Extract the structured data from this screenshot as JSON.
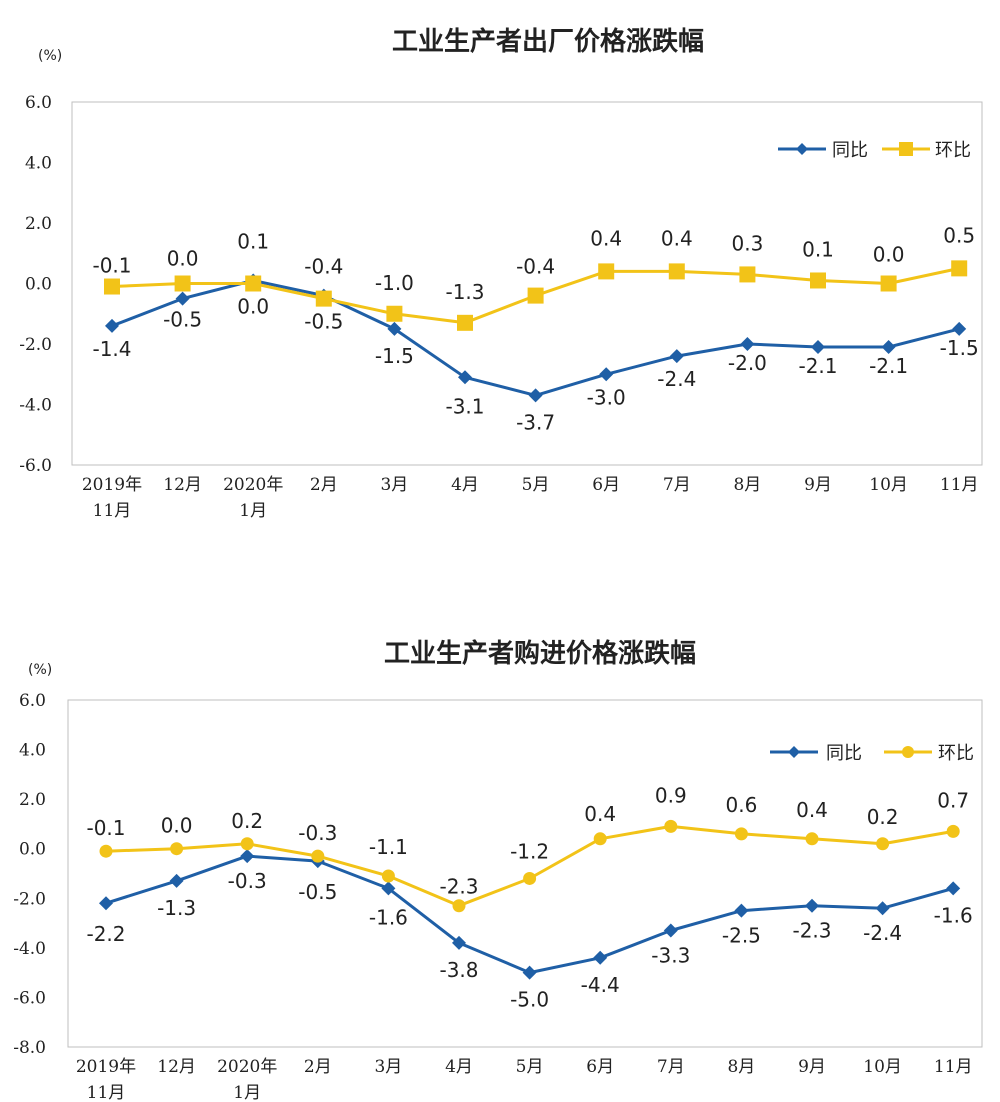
{
  "colors": {
    "yoy": "#1f5fa6",
    "mom": "#f2c318",
    "plot_border": "#bfbfbf"
  },
  "chart_data": [
    {
      "type": "line",
      "title": "工业生产者出厂价格涨跌幅",
      "unit": "(%)",
      "categories": [
        [
          "2019年",
          "11月"
        ],
        [
          "12月"
        ],
        [
          "2020年",
          "1月"
        ],
        [
          "2月"
        ],
        [
          "3月"
        ],
        [
          "4月"
        ],
        [
          "5月"
        ],
        [
          "6月"
        ],
        [
          "7月"
        ],
        [
          "8月"
        ],
        [
          "9月"
        ],
        [
          "10月"
        ],
        [
          "11月"
        ]
      ],
      "ylim": [
        -6.0,
        6.0
      ],
      "yticks": [
        "6.0",
        "4.0",
        "2.0",
        "0.0",
        "-2.0",
        "-4.0",
        "-6.0"
      ],
      "legend_position": "top-right",
      "grid": false,
      "series": [
        {
          "name": "同比",
          "marker": "diamond",
          "color": "#1f5fa6",
          "values": [
            -1.4,
            -0.5,
            0.1,
            -0.4,
            -1.5,
            -3.1,
            -3.7,
            -3.0,
            -2.4,
            -2.0,
            -2.1,
            -2.1,
            -1.5
          ]
        },
        {
          "name": "环比",
          "marker": "square",
          "color": "#f2c318",
          "values": [
            -0.1,
            0.0,
            0.0,
            -0.5,
            -1.0,
            -1.3,
            -0.4,
            0.4,
            0.4,
            0.3,
            0.1,
            0.0,
            0.5
          ]
        }
      ],
      "data_labels": {
        "同比": [
          "-1.4",
          "-0.5",
          "0.1",
          "-0.4",
          "-1.5",
          "-3.1",
          "-3.7",
          "-3.0",
          "-2.4",
          "-2.0",
          "-2.1",
          "-2.1",
          "-1.5"
        ],
        "环比": [
          "-0.1",
          "0.0",
          "0.0",
          "-0.5",
          "-1.0",
          "-1.3",
          "-0.4",
          "0.4",
          "0.4",
          "0.3",
          "0.1",
          "0.0",
          "0.5"
        ]
      }
    },
    {
      "type": "line",
      "title": "工业生产者购进价格涨跌幅",
      "unit": "(%)",
      "categories": [
        [
          "2019年",
          "11月"
        ],
        [
          "12月"
        ],
        [
          "2020年",
          "1月"
        ],
        [
          "2月"
        ],
        [
          "3月"
        ],
        [
          "4月"
        ],
        [
          "5月"
        ],
        [
          "6月"
        ],
        [
          "7月"
        ],
        [
          "8月"
        ],
        [
          "9月"
        ],
        [
          "10月"
        ],
        [
          "11月"
        ]
      ],
      "ylim": [
        -8.0,
        6.0
      ],
      "yticks": [
        "6.0",
        "4.0",
        "2.0",
        "0.0",
        "-2.0",
        "-4.0",
        "-6.0",
        "-8.0"
      ],
      "legend_position": "top-right",
      "grid": false,
      "series": [
        {
          "name": "同比",
          "marker": "diamond",
          "color": "#1f5fa6",
          "values": [
            -2.2,
            -1.3,
            -0.3,
            -0.5,
            -1.6,
            -3.8,
            -5.0,
            -4.4,
            -3.3,
            -2.5,
            -2.3,
            -2.4,
            -1.6
          ]
        },
        {
          "name": "环比",
          "marker": "circle",
          "color": "#f2c318",
          "values": [
            -0.1,
            0.0,
            0.2,
            -0.3,
            -1.1,
            -2.3,
            -1.2,
            0.4,
            0.9,
            0.6,
            0.4,
            0.2,
            0.7
          ]
        }
      ],
      "data_labels": {
        "同比": [
          "-2.2",
          "-1.3",
          "-0.3",
          "-0.5",
          "-1.6",
          "-3.8",
          "-5.0",
          "-4.4",
          "-3.3",
          "-2.5",
          "-2.3",
          "-2.4",
          "-1.6"
        ],
        "环比": [
          "-0.1",
          "0.0",
          "0.2",
          "-0.3",
          "-1.1",
          "-2.3",
          "-1.2",
          "0.4",
          "0.9",
          "0.6",
          "0.4",
          "0.2",
          "0.7"
        ]
      }
    }
  ]
}
